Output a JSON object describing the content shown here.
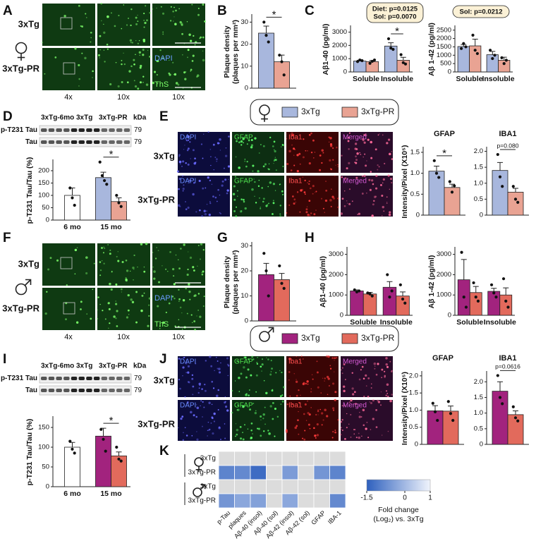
{
  "panel_labels": [
    "A",
    "B",
    "C",
    "D",
    "E",
    "F",
    "G",
    "H",
    "I",
    "J",
    "K"
  ],
  "images": [
    {
      "rows": [
        "3xTg",
        "3xTg-PR"
      ],
      "columns": [
        "4x",
        "10x",
        "10x"
      ],
      "stains": [
        "DAPI",
        "ThS"
      ]
    },
    {
      "rows": [
        "3xTg",
        "3xTg-PR"
      ],
      "channels": [
        "DAPI",
        "GFAP",
        "Iba1",
        "Merged"
      ]
    },
    {
      "rows": [
        "3xTg",
        "3xTg-PR"
      ],
      "columns": [
        "4x",
        "10x",
        "10x"
      ],
      "stains": [
        "DAPI",
        "ThS"
      ]
    },
    {
      "rows": [
        "3xTg",
        "3xTg-PR"
      ],
      "channels": [
        "DAPI",
        "GFAP",
        "Iba1",
        "Merged"
      ]
    }
  ],
  "blots": [
    {
      "lanes": [
        "3xTg-6mo",
        "3xTg",
        "3xTg-PR"
      ],
      "kda": "kDa",
      "rows": [
        {
          "label": "p-T231 Tau",
          "mw": "79"
        },
        {
          "label": "Tau",
          "mw": "79"
        }
      ]
    },
    {
      "lanes": [
        "3xTg-6mo",
        "3xTg",
        "3xTg-PR"
      ],
      "kda": "kDa",
      "rows": [
        {
          "label": "p-T231 Tau",
          "mw": "79"
        },
        {
          "label": "Tau",
          "mw": "79"
        }
      ]
    }
  ],
  "chart_data": [
    {
      "type": "bar",
      "ylabel": [
        "Plaque density",
        "(plaques per mm²)"
      ],
      "categories": [
        null
      ],
      "ylim": [
        0,
        33
      ],
      "yticks": [
        0,
        10,
        20,
        30
      ],
      "significance": "*",
      "series": [
        {
          "name": "3xTg",
          "color": "#a8b7dd",
          "values": [
            25
          ],
          "errors": [
            3.2
          ],
          "points": [
            [
              30,
              24,
              21
            ]
          ]
        },
        {
          "name": "3xTg-PR",
          "color": "#e9a393",
          "values": [
            12
          ],
          "errors": [
            3
          ],
          "points": [
            [
              15,
              12,
              6
            ]
          ]
        }
      ]
    },
    {
      "type": "bar",
      "ylabel": [
        "Aβ1-40 (pg/ml)"
      ],
      "categories": [
        "Soluble",
        "Insoluble"
      ],
      "ylim": [
        0,
        3400
      ],
      "yticks": [
        0,
        1000,
        2000,
        3000
      ],
      "significance": "*",
      "note": [
        "Diet: p=0.0125",
        "Sol: p=0.0070"
      ],
      "series": [
        {
          "color": "#a8b7dd",
          "values": [
            820,
            1950
          ],
          "errors": [
            60,
            250
          ],
          "points": [
            [
              780,
              900,
              850
            ],
            [
              2500,
              1800,
              1700
            ]
          ]
        },
        {
          "color": "#e9a393",
          "values": [
            780,
            880
          ],
          "errors": [
            80,
            220
          ],
          "points": [
            [
              650,
              800,
              900
            ],
            [
              1300,
              700,
              600
            ]
          ]
        }
      ]
    },
    {
      "type": "bar",
      "ylabel": [
        "Aβ 1-42 (pg/ml)"
      ],
      "categories": [
        "Soluble",
        "Insoluble"
      ],
      "ylim": [
        0,
        2700
      ],
      "yticks": [
        0,
        500,
        1000,
        1500,
        2000,
        2500
      ],
      "note": [
        "Sol: p=0.0212"
      ],
      "series": [
        {
          "color": "#a8b7dd",
          "values": [
            1520,
            1030
          ],
          "errors": [
            120,
            200
          ],
          "points": [
            [
              1400,
              1700,
              1500
            ],
            [
              1300,
              800,
              1000
            ]
          ]
        },
        {
          "color": "#e9a393",
          "values": [
            1560,
            700
          ],
          "errors": [
            400,
            180
          ],
          "points": [
            [
              2200,
              1300,
              1100
            ],
            [
              850,
              500,
              700
            ]
          ]
        }
      ]
    },
    {
      "type": "bar",
      "ylabel": [
        "p-T231 Tau/Tau (%)"
      ],
      "categories": [
        "6 mo",
        "15 mo"
      ],
      "ylim": [
        0,
        240
      ],
      "yticks": [
        0,
        50,
        100,
        150,
        200
      ],
      "significance": "*",
      "series": [
        {
          "color": "#ffffff",
          "values": [
            100,
            null
          ],
          "errors": [
            30,
            null
          ],
          "points": [
            [
              130,
              90,
              60
            ],
            null
          ]
        },
        {
          "color": "#a8b7dd",
          "values": [
            null,
            172
          ],
          "errors": [
            null,
            22
          ],
          "points": [
            null,
            [
              235,
              180,
              160,
              145
            ]
          ]
        },
        {
          "color": "#e9a393",
          "values": [
            null,
            75
          ],
          "errors": [
            null,
            15
          ],
          "points": [
            null,
            [
              100,
              70,
              55
            ]
          ]
        }
      ]
    },
    {
      "type": "bar",
      "title": "GFAP",
      "ylabel": [
        "Intensity/Pixel (X10⁵)"
      ],
      "categories": [
        null
      ],
      "ylim": [
        0,
        1.6
      ],
      "yticks": [
        0,
        0.5,
        {
          "value": 1,
          "label": "1.0"
        },
        1.5
      ],
      "significance": "*",
      "series": [
        {
          "color": "#a8b7dd",
          "values": [
            1.05
          ],
          "errors": [
            0.12
          ],
          "points": [
            [
              1.3,
              1.0,
              0.9
            ]
          ]
        },
        {
          "color": "#e9a393",
          "values": [
            0.66
          ],
          "errors": [
            0.08
          ],
          "points": [
            [
              0.8,
              0.55,
              0.7
            ]
          ]
        }
      ]
    },
    {
      "type": "bar",
      "title": "IBA1",
      "categories": [
        null
      ],
      "ylim": [
        0,
        2.1
      ],
      "yticks": [
        0,
        0.5,
        {
          "value": 1,
          "label": "1.0"
        },
        1.5,
        {
          "value": 2,
          "label": "2.0"
        }
      ],
      "significance": "p=0.080",
      "series": [
        {
          "color": "#a8b7dd",
          "values": [
            1.4
          ],
          "errors": [
            0.25
          ],
          "points": [
            [
              1.9,
              1.2,
              0.9
            ]
          ]
        },
        {
          "color": "#e9a393",
          "values": [
            0.72
          ],
          "errors": [
            0.12
          ],
          "points": [
            [
              0.9,
              0.5,
              0.4
            ]
          ]
        }
      ]
    },
    {
      "type": "bar",
      "ylabel": [
        "Plaque density",
        "(plaques per mm²)"
      ],
      "categories": [
        null
      ],
      "ylim": [
        0,
        31
      ],
      "yticks": [
        0,
        10,
        20,
        30
      ],
      "series": [
        {
          "name": "3xTg",
          "color": "#a2237e",
          "values": [
            18.5
          ],
          "errors": [
            4.5
          ],
          "points": [
            [
              27,
              20,
              10
            ]
          ]
        },
        {
          "name": "3xTg-PR",
          "color": "#e26a5c",
          "values": [
            16.5
          ],
          "errors": [
            2.5
          ],
          "points": [
            [
              22,
              15,
              13
            ]
          ]
        }
      ]
    },
    {
      "type": "bar",
      "ylabel": [
        "Aβ1-40 (pg/ml)"
      ],
      "categories": [
        "Soluble",
        "Insoluble"
      ],
      "ylim": [
        0,
        3300
      ],
      "yticks": [
        0,
        1000,
        2000,
        3000
      ],
      "series": [
        {
          "color": "#a2237e",
          "values": [
            1200,
            1380
          ],
          "errors": [
            50,
            280
          ],
          "points": [
            [
              1250,
              1150,
              1200
            ],
            [
              2000,
              900,
              1200
            ]
          ]
        },
        {
          "color": "#e26a5c",
          "values": [
            1050,
            950
          ],
          "errors": [
            80,
            200
          ],
          "points": [
            [
              1100,
              1050,
              950
            ],
            [
              1500,
              800,
              600
            ]
          ]
        }
      ]
    },
    {
      "type": "bar",
      "ylabel": [
        "Aβ 1-42 (pg/ml)"
      ],
      "categories": [
        "Soluble",
        "Insoluble"
      ],
      "ylim": [
        0,
        3300
      ],
      "yticks": [
        0,
        1000,
        2000,
        3000
      ],
      "series": [
        {
          "color": "#a2237e",
          "values": [
            1750,
            1180
          ],
          "errors": [
            1000,
            150
          ],
          "points": [
            [
              3100,
              900,
              400
            ],
            [
              1500,
              1100,
              900
            ]
          ]
        },
        {
          "color": "#e26a5c",
          "values": [
            1120,
            1000
          ],
          "errors": [
            300,
            350
          ],
          "points": [
            [
              1600,
              900,
              700
            ],
            [
              1800,
              700,
              400
            ]
          ]
        }
      ]
    },
    {
      "type": "bar",
      "ylabel": [
        "p-T231 Tau/Tau (%)"
      ],
      "categories": [
        "6 mo",
        "15 mo"
      ],
      "ylim": [
        0,
        175
      ],
      "yticks": [
        0,
        50,
        100,
        150
      ],
      "significance": "*",
      "series": [
        {
          "color": "#ffffff",
          "values": [
            100,
            null
          ],
          "errors": [
            12,
            null
          ],
          "points": [
            [
              115,
              95,
              85
            ],
            null
          ]
        },
        {
          "color": "#a2237e",
          "values": [
            null,
            128
          ],
          "errors": [
            null,
            20
          ],
          "points": [
            null,
            [
              145,
              120,
              90
            ]
          ]
        },
        {
          "color": "#e26a5c",
          "values": [
            null,
            78
          ],
          "errors": [
            null,
            10
          ],
          "points": [
            null,
            [
              100,
              70,
              65
            ]
          ]
        }
      ]
    },
    {
      "type": "bar",
      "title": "GFAP",
      "ylabel": [
        "Intensity/Pixel (X10⁵)"
      ],
      "categories": [
        null
      ],
      "ylim": [
        0,
        2.1
      ],
      "yticks": [
        0,
        0.5,
        {
          "value": 1,
          "label": "1.0"
        },
        1.5,
        {
          "value": 2,
          "label": "2.0"
        }
      ],
      "series": [
        {
          "color": "#a2237e",
          "values": [
            0.98
          ],
          "errors": [
            0.15
          ],
          "points": [
            [
              1.2,
              0.95,
              0.7
            ]
          ]
        },
        {
          "color": "#e26a5c",
          "values": [
            0.97
          ],
          "errors": [
            0.15
          ],
          "points": [
            [
              1.25,
              0.9,
              0.7
            ]
          ]
        }
      ]
    },
    {
      "type": "bar",
      "title": "IBA1",
      "categories": [
        null
      ],
      "ylim": [
        0,
        2.3
      ],
      "yticks": [
        0,
        0.5,
        {
          "value": 1,
          "label": "1.0"
        },
        1.5,
        {
          "value": 2,
          "label": "2.0"
        }
      ],
      "significance": "p=0.0616",
      "series": [
        {
          "color": "#a2237e",
          "values": [
            1.7
          ],
          "errors": [
            0.3
          ],
          "points": [
            [
              2.2,
              1.5,
              1.3
            ]
          ]
        },
        {
          "color": "#e26a5c",
          "values": [
            0.95
          ],
          "errors": [
            0.12
          ],
          "points": [
            [
              1.2,
              0.85,
              0.75
            ]
          ]
        }
      ]
    },
    {
      "type": "heatmap",
      "rows": [
        "3xTg",
        "3xTg-PR",
        "3xTg",
        "3xTg-PR"
      ],
      "columns": [
        "p-Tau",
        "plaques",
        "Aβ-40 (insol)",
        "Aβ-40 (sol)",
        "Aβ-42 (insol)",
        "Aβ-42 (sol)",
        "GFAP",
        "IBA-1"
      ],
      "values": [
        [
          null,
          null,
          null,
          null,
          null,
          null,
          null,
          null
        ],
        [
          -0.9,
          -0.8,
          -1.3,
          null,
          -0.5,
          null,
          -0.6,
          -0.9
        ],
        [
          null,
          null,
          null,
          null,
          null,
          null,
          null,
          null
        ],
        [
          -0.6,
          -0.3,
          -0.4,
          null,
          -0.3,
          null,
          null,
          -0.8
        ]
      ],
      "colorbar": {
        "range": [
          -1.5,
          1
        ],
        "ticks": [
          -1.5,
          0,
          1
        ],
        "label": [
          "Fold change",
          "(Log₂) vs. 3xTg"
        ]
      }
    }
  ]
}
